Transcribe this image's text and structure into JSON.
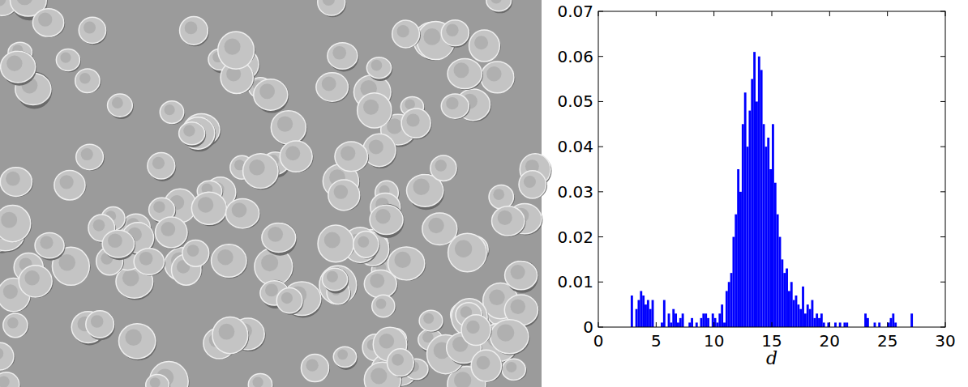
{
  "chart_data": {
    "type": "histogram",
    "xlabel": "d",
    "color": "#0000ff",
    "xlim": [
      0,
      30
    ],
    "xticks": [
      0,
      5,
      10,
      15,
      20,
      25,
      30
    ],
    "ylim": [
      0,
      0.07
    ],
    "yticks": [
      0,
      0.01,
      0.02,
      0.03,
      0.04,
      0.05,
      0.06,
      0.07
    ],
    "bins": [
      2.6,
      2.8,
      3,
      3.2,
      3.4,
      3.6,
      3.8,
      4,
      4.2,
      4.4,
      4.6,
      4.8,
      5,
      5.2,
      5.4,
      5.6,
      5.8,
      6,
      6.2,
      6.4,
      6.6,
      6.8,
      7,
      7.2,
      7.4,
      7.6,
      7.8,
      8,
      8.2,
      8.4,
      8.6,
      8.8,
      9,
      9.2,
      9.4,
      9.6,
      9.8,
      10,
      10.2,
      10.4,
      10.6,
      10.8,
      11,
      11.2,
      11.4,
      11.6,
      11.8,
      12,
      12.2,
      12.4,
      12.6,
      12.8,
      13,
      13.2,
      13.4,
      13.6,
      13.8,
      14,
      14.2,
      14.4,
      14.6,
      14.8,
      15,
      15.2,
      15.4,
      15.6,
      15.8,
      16,
      16.2,
      16.4,
      16.6,
      16.8,
      17,
      17.2,
      17.4,
      17.6,
      17.8,
      18,
      18.2,
      18.4,
      18.6,
      18.8,
      19,
      19.2,
      19.4,
      19.6,
      19.8,
      20,
      20.2,
      20.4,
      20.6,
      20.8,
      21,
      21.2,
      21.4,
      21.6,
      21.8,
      22,
      22.2,
      22.4,
      22.6,
      22.8,
      23,
      23.2,
      23.4,
      23.6,
      23.8,
      24,
      24.2,
      24.4,
      24.6,
      24.8,
      25,
      25.2,
      25.4,
      25.6,
      25.8,
      26,
      26.2,
      26.4,
      26.6,
      26.8,
      27,
      27.2
    ],
    "values": [
      0,
      0.007,
      0,
      0.004,
      0.006,
      0.008,
      0.007,
      0.005,
      0.006,
      0.004,
      0.006,
      0,
      0,
      0,
      0.001,
      0.006,
      0,
      0.003,
      0.001,
      0.004,
      0.003,
      0.001,
      0.002,
      0.003,
      0,
      0,
      0.001,
      0.002,
      0,
      0.001,
      0,
      0.002,
      0.003,
      0.003,
      0.002,
      0,
      0.003,
      0.002,
      0.001,
      0.003,
      0.005,
      0.001,
      0.008,
      0.01,
      0.012,
      0.02,
      0.025,
      0.035,
      0.03,
      0.045,
      0.052,
      0.04,
      0.048,
      0.055,
      0.061,
      0.05,
      0.06,
      0.057,
      0.045,
      0.04,
      0.042,
      0.035,
      0.045,
      0.032,
      0.025,
      0.02,
      0.015,
      0.012,
      0.013,
      0.008,
      0.01,
      0.006,
      0.007,
      0.005,
      0.004,
      0.009,
      0.003,
      0.005,
      0.004,
      0.006,
      0.002,
      0.003,
      0.002,
      0.003,
      0.001,
      0,
      0.001,
      0,
      0,
      0.001,
      0,
      0.001,
      0,
      0.001,
      0.001,
      0,
      0,
      0,
      0,
      0,
      0,
      0,
      0.003,
      0.002,
      0,
      0,
      0.001,
      0,
      0.001,
      0,
      0,
      0,
      0.001,
      0.002,
      0.003,
      0.001,
      0,
      0,
      0,
      0,
      0,
      0,
      0.003
    ]
  }
}
